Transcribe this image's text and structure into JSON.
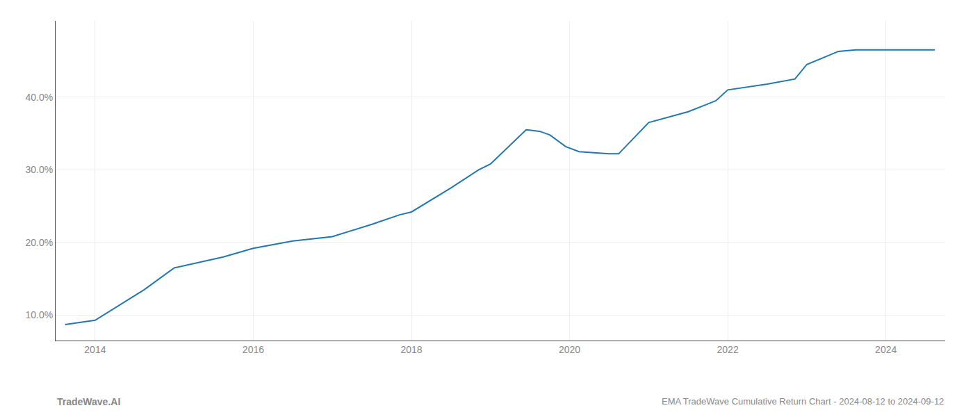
{
  "chart_data": {
    "type": "line",
    "title": "EMA TradeWave Cumulative Return Chart - 2024-08-12 to 2024-09-12",
    "annotations": [
      "TradeWave.AI"
    ],
    "x": [
      2013.62,
      2014.0,
      2014.62,
      2015.0,
      2015.62,
      2016.0,
      2016.5,
      2017.0,
      2017.5,
      2017.85,
      2018.0,
      2018.5,
      2018.85,
      2019.0,
      2019.45,
      2019.62,
      2019.75,
      2019.95,
      2020.12,
      2020.5,
      2020.62,
      2021.0,
      2021.5,
      2021.85,
      2022.0,
      2022.5,
      2022.85,
      2023.0,
      2023.4,
      2023.62,
      2023.75,
      2024.0,
      2024.62
    ],
    "values": [
      8.7,
      9.3,
      13.5,
      16.5,
      18.0,
      19.2,
      20.2,
      20.8,
      22.5,
      23.8,
      24.2,
      27.5,
      30.0,
      30.8,
      35.5,
      35.3,
      34.8,
      33.2,
      32.5,
      32.2,
      32.2,
      36.5,
      38.0,
      39.5,
      41.0,
      41.8,
      42.5,
      44.5,
      46.3,
      46.5,
      46.5,
      46.5,
      46.5
    ],
    "color": "#1f77b4",
    "xlim": [
      2013.5,
      2024.75
    ],
    "ylim": [
      6.5,
      50.5
    ],
    "xticks": [
      2014,
      2016,
      2018,
      2020,
      2022,
      2024
    ],
    "yticks": [
      {
        "value": 10.0,
        "label": "10.0%"
      },
      {
        "value": 20.0,
        "label": "20.0%"
      },
      {
        "value": 30.0,
        "label": "30.0%"
      },
      {
        "value": 40.0,
        "label": "40.0%"
      }
    ],
    "grid": true
  }
}
